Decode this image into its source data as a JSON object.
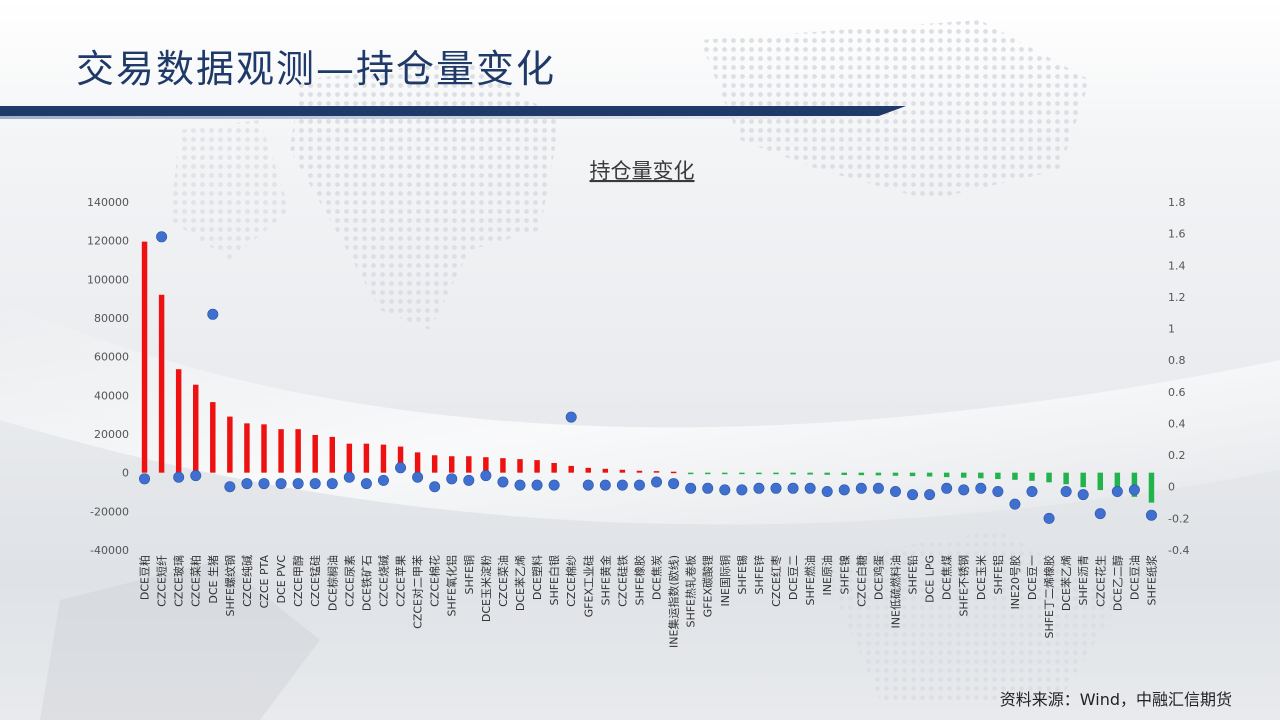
{
  "page": {
    "title": "交易数据观测—持仓量变化",
    "source": "资料来源：Wind，中融汇信期货"
  },
  "colors": {
    "title": "#1f3a68",
    "positive_bar": "#ee1111",
    "negative_bar": "#22b34c",
    "dot": "#3f6fcf"
  },
  "chart_data": {
    "type": "bar",
    "title": "持仓量变化",
    "xlabel": "",
    "ylabel": "",
    "ylim": [
      -40000,
      140000
    ],
    "y2lim": [
      -0.4,
      1.8
    ],
    "yticks": [
      140000,
      120000,
      100000,
      80000,
      60000,
      40000,
      20000,
      0,
      -20000,
      -40000
    ],
    "y2ticks": [
      "1.8",
      "1.6",
      "1.4",
      "1.2",
      "1",
      "0.8",
      "0.6",
      "0.4",
      "0.2",
      "0",
      "-0.2",
      "-0.4"
    ],
    "grid": false,
    "categories": [
      "DCE豆粕",
      "CZCE短纤",
      "CZCE玻璃",
      "CZCE菜粕",
      "DCE 生猪",
      "SHFE螺纹钢",
      "CZCE纯碱",
      "CZCE PTA",
      "DCE PVC",
      "CZCE甲醇",
      "CZCE锰硅",
      "DCE棕榈油",
      "CZCE尿素",
      "DCE铁矿石",
      "CZCE烧碱",
      "CZCE苹果",
      "CZCE对二甲苯",
      "CZCE棉花",
      "SHFE氧化铝",
      "SHFE铜",
      "DCE玉米淀粉",
      "CZCE菜油",
      "DCE苯乙烯",
      "DCE塑料",
      "SHFE白银",
      "CZCE棉纱",
      "GFEX工业硅",
      "SHFE黄金",
      "CZCE硅铁",
      "SHFE橡胶",
      "DCE焦炭",
      "INE集运指数(欧线)",
      "SHFE热轧卷板",
      "GFEX碳酸锂",
      "INE国际铜",
      "SHFE锡",
      "SHFE锌",
      "CZCE红枣",
      "DCE豆二",
      "SHFE燃油",
      "INE原油",
      "SHFE镍",
      "CZCE白糖",
      "DCE鸡蛋",
      "INE低硫燃料油",
      "SHFE铅",
      "DCE LPG",
      "DCE焦煤",
      "SHFE不锈钢",
      "DCE玉米",
      "SHFE铝",
      "INE20号胶",
      "DCE豆一",
      "SHFE丁二烯橡胶",
      "DCE苯乙烯",
      "SHFE沥青",
      "CZCE花生",
      "DCE乙二醇",
      "DCE豆油",
      "SHFE纸浆"
    ],
    "series": [
      {
        "name": "",
        "axis": "left",
        "type": "bar",
        "values": [
          119500,
          92000,
          53500,
          45500,
          36500,
          29000,
          25500,
          25000,
          22500,
          22500,
          19500,
          18500,
          15000,
          15000,
          14500,
          13500,
          10500,
          9000,
          8500,
          8500,
          8000,
          7500,
          7000,
          6500,
          5000,
          3500,
          2500,
          2000,
          1500,
          1000,
          800,
          500,
          -300,
          -400,
          -500,
          -600,
          -700,
          -800,
          -900,
          -1000,
          -1100,
          -1200,
          -1300,
          -1400,
          -1600,
          -1800,
          -2000,
          -2300,
          -2600,
          -2900,
          -3300,
          -3700,
          -4200,
          -5000,
          -6000,
          -7500,
          -9000,
          -10500,
          -12500,
          -15500
        ]
      },
      {
        "name": "",
        "axis": "right",
        "type": "scatter",
        "values": [
          0.05,
          1.58,
          0.06,
          0.07,
          1.09,
          0.0,
          0.02,
          0.02,
          0.02,
          0.02,
          0.02,
          0.02,
          0.06,
          0.02,
          0.04,
          0.12,
          0.06,
          0.0,
          0.05,
          0.04,
          0.07,
          0.03,
          0.01,
          0.01,
          0.01,
          0.44,
          0.01,
          0.01,
          0.01,
          0.01,
          0.03,
          0.02,
          -0.01,
          -0.01,
          -0.02,
          -0.02,
          -0.01,
          -0.01,
          -0.01,
          -0.01,
          -0.03,
          -0.02,
          -0.01,
          -0.01,
          -0.03,
          -0.05,
          -0.05,
          -0.01,
          -0.02,
          -0.01,
          -0.03,
          -0.11,
          -0.03,
          -0.2,
          -0.03,
          -0.05,
          -0.17,
          -0.03,
          -0.02,
          -0.18
        ]
      }
    ]
  }
}
